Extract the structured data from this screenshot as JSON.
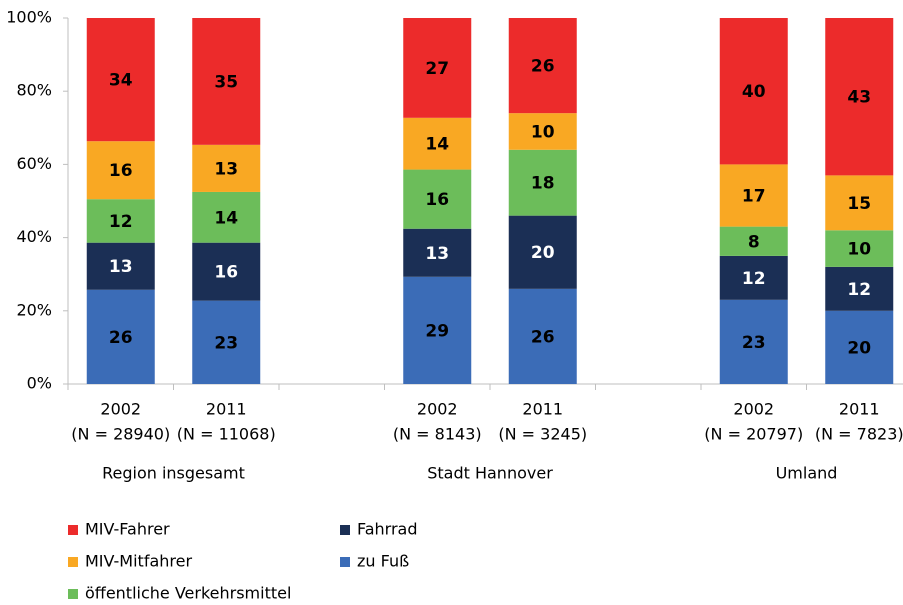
{
  "chart_data": {
    "type": "stacked_bar_100",
    "categories": [
      "2002",
      "2011",
      null,
      "2002",
      "2011",
      null,
      "2002",
      "2011"
    ],
    "category_sublabels": [
      "(N = 28940)",
      "(N = 11068)",
      null,
      "(N = 8143)",
      "(N = 3245)",
      null,
      "(N = 20797)",
      "(N = 7823)"
    ],
    "groups": [
      "Region insgesamt",
      "Stadt Hannover",
      "Umland"
    ],
    "series": [
      {
        "name": "zu Fuß",
        "color": "#3b6cb7",
        "label_color": "#000000",
        "values": [
          26,
          23,
          null,
          29,
          26,
          null,
          23,
          20
        ]
      },
      {
        "name": "Fahrrad",
        "color": "#1b2f55",
        "label_color": "#ffffff",
        "values": [
          13,
          16,
          null,
          13,
          20,
          null,
          12,
          12
        ]
      },
      {
        "name": "öffentliche Verkehrsmittel",
        "color": "#6cbd5a",
        "label_color": "#000000",
        "values": [
          12,
          14,
          null,
          16,
          18,
          null,
          8,
          10
        ]
      },
      {
        "name": "MIV-Mitfahrer",
        "color": "#f9a823",
        "label_color": "#000000",
        "values": [
          16,
          13,
          null,
          14,
          10,
          null,
          17,
          15
        ]
      },
      {
        "name": "MIV-Fahrer",
        "color": "#ec2b2b",
        "label_color": "#000000",
        "values": [
          34,
          35,
          null,
          27,
          26,
          null,
          40,
          43
        ]
      }
    ],
    "ylim": [
      0,
      100
    ],
    "yticks": [
      {
        "value": 0,
        "label": "0%"
      },
      {
        "value": 20,
        "label": "20%"
      },
      {
        "value": 40,
        "label": "40%"
      },
      {
        "value": 60,
        "label": "60%"
      },
      {
        "value": 80,
        "label": "80%"
      },
      {
        "value": 100,
        "label": "100%"
      }
    ],
    "grid": false,
    "legend": "bottom-left"
  }
}
